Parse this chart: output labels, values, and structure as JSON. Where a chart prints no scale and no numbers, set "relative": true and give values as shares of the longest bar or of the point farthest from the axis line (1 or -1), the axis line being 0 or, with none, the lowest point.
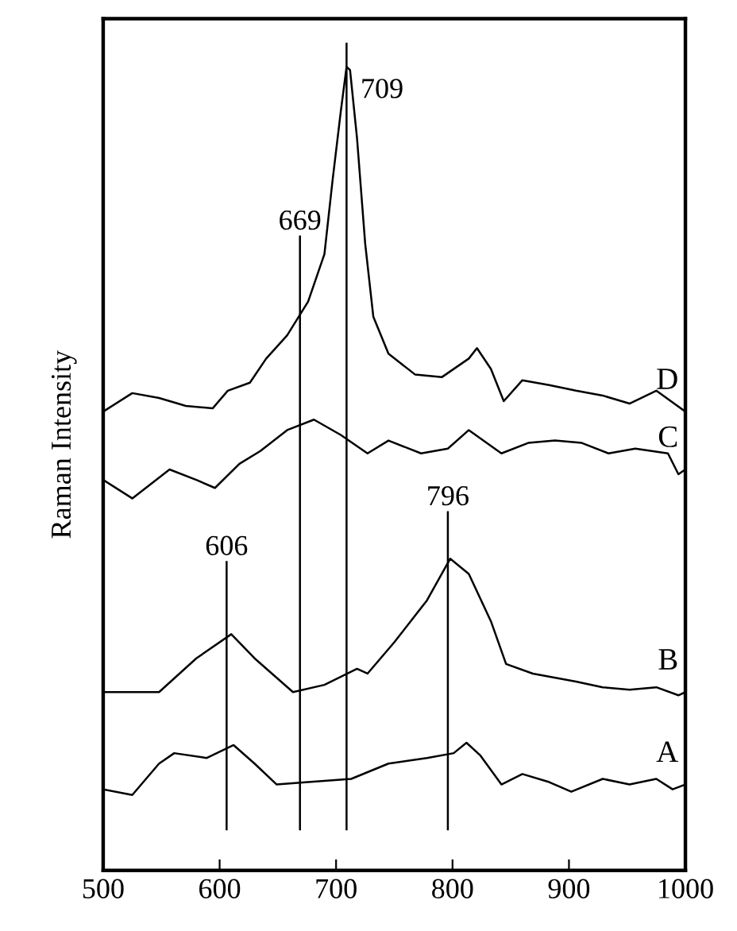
{
  "chart_data": {
    "type": "line",
    "ylabel": "Raman Intensity",
    "relative": true,
    "tick_labels": "x",
    "grid": false,
    "legend": false,
    "xlim": [
      500,
      1000
    ],
    "xticks": [
      500,
      600,
      700,
      800,
      900,
      1000
    ],
    "series": [
      {
        "name": "A",
        "color": "#000000",
        "x": [
          500,
          525,
          548,
          561,
          589,
          612,
          630,
          649,
          676,
          713,
          745,
          778,
          801,
          812,
          824,
          842,
          860,
          883,
          902,
          929,
          952,
          975,
          989,
          1000
        ],
        "values": [
          0.101,
          0.094,
          0.133,
          0.146,
          0.14,
          0.156,
          0.133,
          0.107,
          0.11,
          0.114,
          0.133,
          0.14,
          0.146,
          0.159,
          0.143,
          0.107,
          0.12,
          0.11,
          0.098,
          0.114,
          0.107,
          0.114,
          0.101,
          0.107
        ]
      },
      {
        "name": "B",
        "color": "#000000",
        "x": [
          500,
          548,
          580,
          610,
          630,
          663,
          690,
          718,
          727,
          750,
          778,
          798,
          814,
          833,
          846,
          869,
          906,
          929,
          952,
          975,
          994,
          1000
        ],
        "values": [
          0.222,
          0.222,
          0.264,
          0.294,
          0.264,
          0.222,
          0.231,
          0.251,
          0.245,
          0.284,
          0.336,
          0.388,
          0.369,
          0.31,
          0.257,
          0.245,
          0.235,
          0.228,
          0.225,
          0.228,
          0.218,
          0.222
        ]
      },
      {
        "name": "C",
        "color": "#000000",
        "x": [
          500,
          525,
          557,
          580,
          596,
          617,
          635,
          658,
          681,
          704,
          727,
          745,
          773,
          796,
          814,
          842,
          865,
          888,
          911,
          934,
          957,
          985,
          994,
          1000
        ],
        "values": [
          0.486,
          0.463,
          0.499,
          0.486,
          0.476,
          0.506,
          0.522,
          0.548,
          0.561,
          0.542,
          0.519,
          0.535,
          0.519,
          0.525,
          0.548,
          0.519,
          0.532,
          0.535,
          0.532,
          0.519,
          0.525,
          0.519,
          0.493,
          0.499
        ]
      },
      {
        "name": "D",
        "color": "#000000",
        "x": [
          500,
          525,
          548,
          571,
          594,
          607,
          626,
          640,
          658,
          676,
          690,
          697,
          704,
          709,
          712,
          718,
          725,
          732,
          745,
          768,
          791,
          814,
          821,
          833,
          844,
          860,
          883,
          906,
          929,
          952,
          975,
          1000
        ],
        "values": [
          0.571,
          0.594,
          0.588,
          0.578,
          0.575,
          0.597,
          0.607,
          0.637,
          0.666,
          0.708,
          0.767,
          0.859,
          0.944,
          1.0,
          0.996,
          0.911,
          0.78,
          0.689,
          0.643,
          0.617,
          0.614,
          0.637,
          0.65,
          0.624,
          0.584,
          0.61,
          0.604,
          0.597,
          0.591,
          0.581,
          0.597,
          0.571
        ]
      }
    ],
    "ref_lines": [
      {
        "axis": "x",
        "value": 606
      },
      {
        "axis": "x",
        "value": 669
      },
      {
        "axis": "x",
        "value": 709
      },
      {
        "axis": "x",
        "value": 796
      }
    ],
    "annotations": [
      {
        "text": "606",
        "x": 606,
        "y": 0.385
      },
      {
        "text": "669",
        "x": 669,
        "y": 0.79
      },
      {
        "text": "709",
        "x": 709,
        "y": 0.97
      },
      {
        "text": "796",
        "x": 796,
        "y": 0.447
      }
    ]
  }
}
